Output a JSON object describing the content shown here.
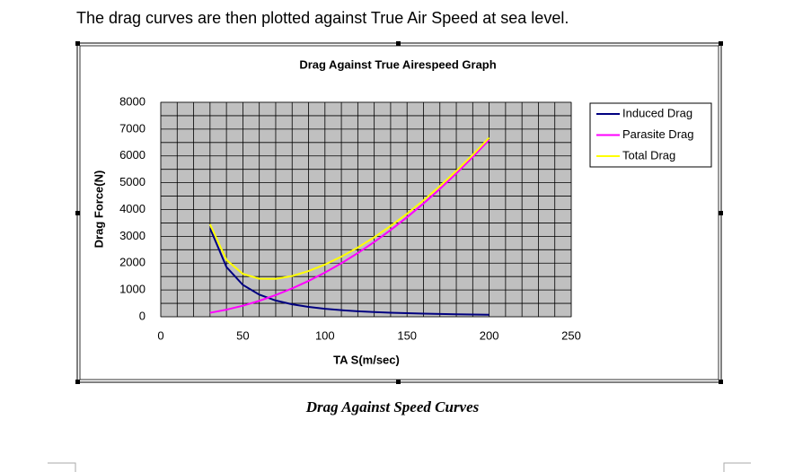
{
  "intro_text": "The drag curves are then plotted against True Air Speed at sea level.",
  "chart_data": {
    "type": "line",
    "title": "Drag Against True Airespeed Graph",
    "x_label": "TA S(m/sec)",
    "y_label": "Drag Force(N)",
    "x": [
      30,
      40,
      50,
      60,
      70,
      80,
      90,
      100,
      110,
      120,
      130,
      140,
      150,
      160,
      170,
      180,
      190,
      200
    ],
    "series": [
      {
        "name": "Induced Drag",
        "color": "#000080",
        "values": [
          3300,
          1856,
          1188,
          825,
          606,
          464,
          367,
          297,
          245,
          206,
          176,
          152,
          132,
          116,
          103,
          92,
          82,
          74
        ]
      },
      {
        "name": "Parasite Drag",
        "color": "#ff00ff",
        "values": [
          149,
          264,
          413,
          594,
          809,
          1056,
          1337,
          1650,
          1997,
          2376,
          2789,
          3234,
          3713,
          4224,
          4769,
          5346,
          5957,
          6600
        ]
      },
      {
        "name": "Total Drag",
        "color": "#ffff00",
        "values": [
          3449,
          2120,
          1601,
          1419,
          1415,
          1520,
          1704,
          1947,
          2242,
          2582,
          2965,
          3386,
          3845,
          4340,
          4872,
          5438,
          6039,
          6674
        ]
      }
    ],
    "xlim": [
      0,
      250
    ],
    "xticks": [
      0,
      50,
      100,
      150,
      200,
      250
    ],
    "ylim": [
      0,
      8000
    ],
    "yticks": [
      0,
      1000,
      2000,
      3000,
      4000,
      5000,
      6000,
      7000,
      8000
    ],
    "xgrid": [
      0,
      10,
      20,
      30,
      40,
      50,
      60,
      70,
      80,
      90,
      100,
      110,
      120,
      130,
      140,
      150,
      160,
      170,
      180,
      190,
      200,
      210,
      220,
      230,
      240,
      250
    ],
    "ygrid": [
      0,
      500,
      1000,
      1500,
      2000,
      2500,
      3000,
      3500,
      4000,
      4500,
      5000,
      5500,
      6000,
      6500,
      7000,
      7500,
      8000
    ],
    "grid": true,
    "plot_background": "#c0c0c0",
    "legend": "right"
  },
  "caption": "Drag Against Speed Curves"
}
